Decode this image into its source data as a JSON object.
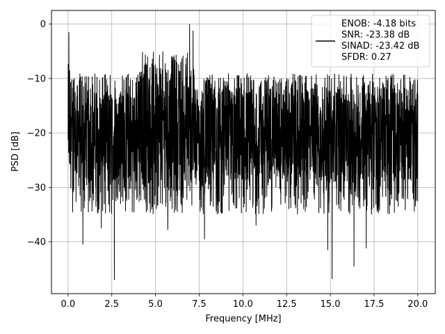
{
  "chart_data": {
    "type": "line",
    "title": "",
    "xlabel": "Frequency [MHz]",
    "ylabel": "PSD [dB]",
    "xlim": [
      -0.95,
      21.0
    ],
    "ylim": [
      -49.5,
      2.5
    ],
    "xticks": [
      0.0,
      2.5,
      5.0,
      7.5,
      10.0,
      12.5,
      15.0,
      17.5,
      20.0
    ],
    "xtick_labels": [
      "0.0",
      "2.5",
      "5.0",
      "7.5",
      "10.0",
      "12.5",
      "15.0",
      "17.5",
      "20.0"
    ],
    "yticks": [
      0,
      -10,
      -20,
      -30,
      -40
    ],
    "ytick_labels": [
      "0",
      "−10",
      "−20",
      "−30",
      "−40"
    ],
    "grid": true,
    "legend_position": "top-right",
    "series": [
      {
        "name": "",
        "color": "#000000",
        "x_range": [
          0.0,
          20.0
        ],
        "typical_upper_db": -12,
        "typical_lower_db": -29,
        "tone_region_mhz": [
          4.0,
          7.2
        ],
        "tone_region_upper_db": -8,
        "features": [
          {
            "x": 0.05,
            "y": -1.5
          },
          {
            "x": 6.95,
            "y": 0.0
          },
          {
            "x": 7.15,
            "y": -1.2
          },
          {
            "x": 2.65,
            "y": -47.0
          },
          {
            "x": 15.1,
            "y": -46.8
          },
          {
            "x": 16.35,
            "y": -44.5
          },
          {
            "x": 14.85,
            "y": -41.5
          },
          {
            "x": 17.05,
            "y": -41.2
          },
          {
            "x": 7.8,
            "y": -39.5
          },
          {
            "x": 0.85,
            "y": -40.5
          },
          {
            "x": 10.75,
            "y": -37.0
          },
          {
            "x": 5.7,
            "y": -37.8
          },
          {
            "x": 1.9,
            "y": -37.5
          }
        ]
      }
    ],
    "legend_entries": [
      "ENOB: -4.18 bits",
      "SNR: -23.38 dB",
      "SINAD: -23.42 dB",
      "SFDR: 0.27"
    ]
  }
}
